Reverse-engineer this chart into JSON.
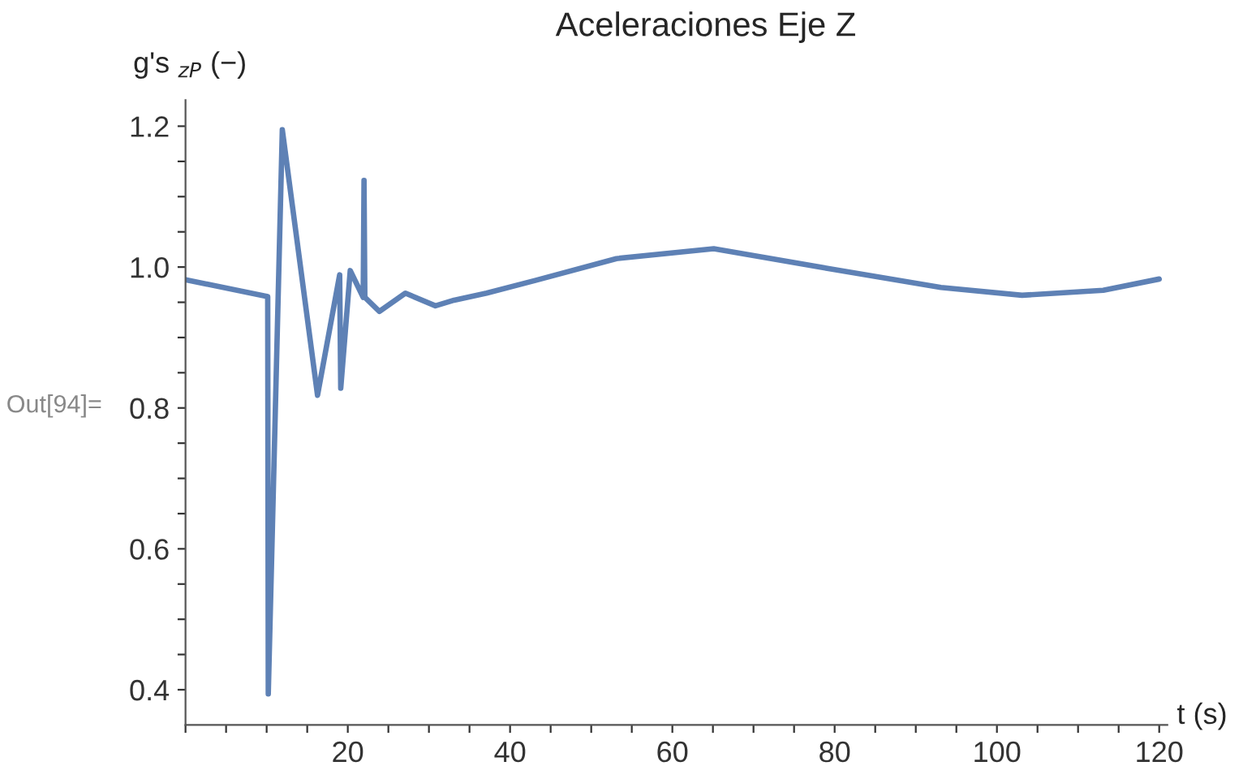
{
  "chart_data": {
    "type": "line",
    "title": "Aceleraciones Eje Z",
    "xlabel": "t (s)",
    "ylabel": "g's $_{zP}$ (−)",
    "annotations": [
      "Out[94]="
    ],
    "x": [
      0,
      10.13,
      10.2,
      11.93,
      16.27,
      19.0,
      19.13,
      20.3,
      21.9,
      22.0,
      22.1,
      23.9,
      27.1,
      30.8,
      33.1,
      37.1,
      43.1,
      53.1,
      65.1,
      79.7,
      93.1,
      103.1,
      113.1,
      120
    ],
    "series": [
      {
        "color": "#5e81b5",
        "values": [
          0.982,
          0.958,
          0.394,
          1.195,
          0.818,
          0.989,
          0.828,
          0.995,
          0.957,
          1.123,
          0.957,
          0.937,
          0.963,
          0.945,
          0.953,
          0.963,
          0.981,
          1.012,
          1.026,
          0.997,
          0.971,
          0.96,
          0.967,
          0.983
        ]
      }
    ],
    "xlim": [
      0,
      121
    ],
    "ylim": [
      0.35,
      1.237
    ],
    "xticks": [
      {
        "value": 0,
        "label": null
      },
      {
        "value": 5,
        "label": null
      },
      {
        "value": 10,
        "label": null
      },
      {
        "value": 15,
        "label": null
      },
      20,
      {
        "value": 25,
        "label": null
      },
      {
        "value": 30,
        "label": null
      },
      {
        "value": 35,
        "label": null
      },
      40,
      {
        "value": 45,
        "label": null
      },
      {
        "value": 50,
        "label": null
      },
      {
        "value": 55,
        "label": null
      },
      60,
      {
        "value": 65,
        "label": null
      },
      {
        "value": 70,
        "label": null
      },
      {
        "value": 75,
        "label": null
      },
      80,
      {
        "value": 85,
        "label": null
      },
      {
        "value": 90,
        "label": null
      },
      {
        "value": 95,
        "label": null
      },
      100,
      {
        "value": 105,
        "label": null
      },
      {
        "value": 110,
        "label": null
      },
      {
        "value": 115,
        "label": null
      },
      120
    ],
    "yticks": [
      {
        "value": 0.4,
        "label": "0.4"
      },
      {
        "value": 0.45,
        "label": null
      },
      {
        "value": 0.5,
        "label": null
      },
      {
        "value": 0.55,
        "label": null
      },
      {
        "value": 0.6,
        "label": "0.6"
      },
      {
        "value": 0.65,
        "label": null
      },
      {
        "value": 0.7,
        "label": null
      },
      {
        "value": 0.75,
        "label": null
      },
      {
        "value": 0.8,
        "label": "0.8"
      },
      {
        "value": 0.85,
        "label": null
      },
      {
        "value": 0.9,
        "label": null
      },
      {
        "value": 0.95,
        "label": null
      },
      {
        "value": 1.0,
        "label": "1.0"
      },
      {
        "value": 1.05,
        "label": null
      },
      {
        "value": 1.1,
        "label": null
      },
      {
        "value": 1.15,
        "label": null
      },
      {
        "value": 1.2,
        "label": "1.2"
      }
    ],
    "grid": false,
    "legend": false,
    "line_style": "solid",
    "marker": "none"
  }
}
